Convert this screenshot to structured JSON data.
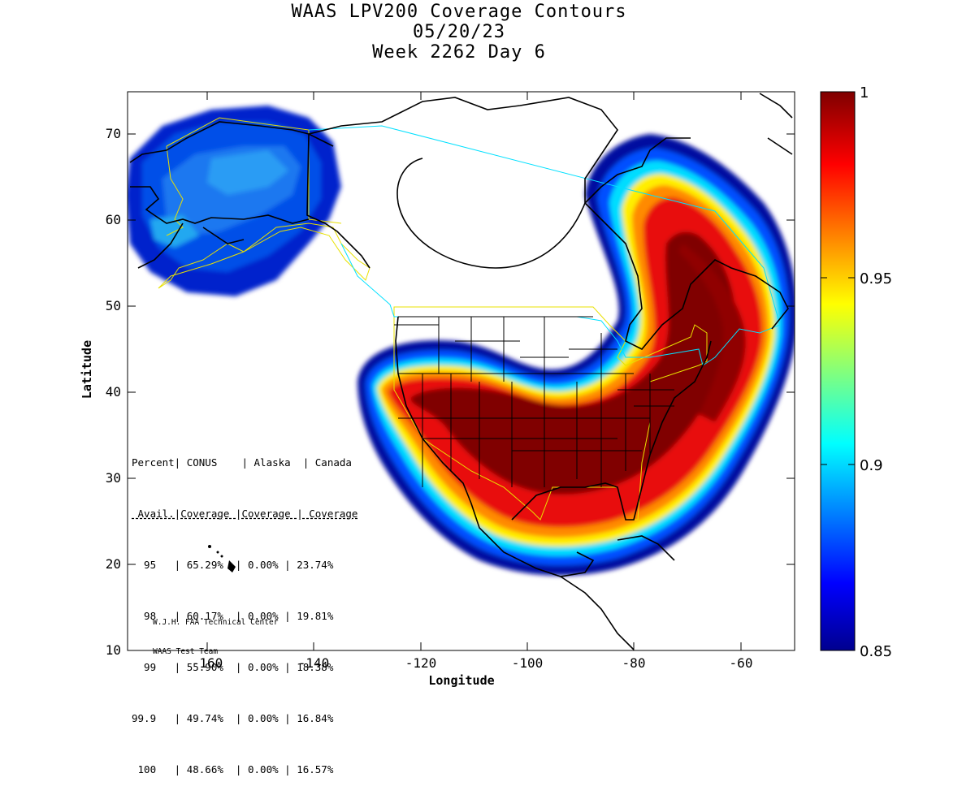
{
  "title": {
    "line1": "WAAS LPV200 Coverage Contours",
    "line2": "05/20/23",
    "line3": "Week 2262 Day 6"
  },
  "axes": {
    "xlabel": "Longitude",
    "ylabel": "Latitude",
    "x_ticks": [
      "-160",
      "-140",
      "-120",
      "-100",
      "-80",
      "-60"
    ],
    "y_ticks": [
      "70",
      "60",
      "50",
      "40",
      "30",
      "20",
      "10"
    ],
    "x_range": [
      -175,
      -50
    ],
    "y_range": [
      10,
      75
    ]
  },
  "colorbar": {
    "ticks": [
      "1",
      "0.95",
      "0.9",
      "0.85"
    ],
    "range": [
      0.85,
      1
    ],
    "colormap": "jet"
  },
  "stats": {
    "header1": "Percent| CONUS    | Alaska  | Canada",
    "header2": " Avail.|Coverage |Coverage | Coverage",
    "rows": [
      "  95   | 65.29%  | 0.00% | 23.74%",
      "  98   | 60.17%  | 0.00% | 19.81%",
      "  99   | 55.90%  | 0.00% | 18.38%",
      "99.9   | 49.74%  | 0.00% | 16.84%",
      " 100   | 48.66%  | 0.00% | 16.57%"
    ]
  },
  "credit": {
    "line1": "W.J.H. FAA Technical Center",
    "line2": "WAAS Test Team"
  },
  "colors": {
    "darkred": "#7f0000",
    "red": "#e01010",
    "orange": "#ff8000",
    "yellow": "#ffee00",
    "cyan": "#00d8ff",
    "blue": "#1060f0",
    "darkblue": "#00008f",
    "service_volume_yellow": "#e8e000",
    "service_volume_cyan": "#00e0ff"
  }
}
